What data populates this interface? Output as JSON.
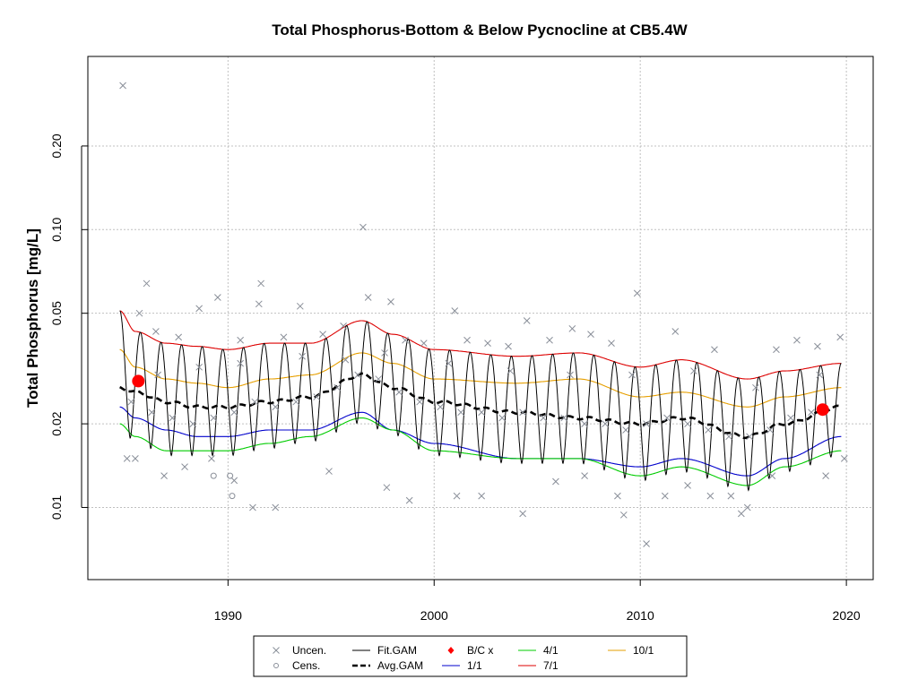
{
  "chart_data": {
    "type": "scatter",
    "title": "Total Phosphorus-Bottom & Below Pycnocline at CB5.4W",
    "xlabel": "",
    "ylabel": "Total Phosphorus [mg/L]",
    "y_scale": "log",
    "xlim": [
      1983.2,
      2021.3
    ],
    "ylim": [
      0.0055,
      0.42
    ],
    "x_ticks": [
      "1990",
      "2000",
      "2010",
      "2020"
    ],
    "y_ticks": [
      "0.01",
      "0.02",
      "0.05",
      "0.10",
      "0.20"
    ],
    "grid": true,
    "grid_style": "dotted grey",
    "legend": {
      "placement": "bottom-outside",
      "entries": [
        {
          "label": "Uncen.",
          "symbol": "x",
          "color": "#8a8f99"
        },
        {
          "label": "Cens.",
          "symbol": "circle",
          "color": "#8a8f99"
        },
        {
          "label": "Fit.GAM",
          "symbol": "line",
          "color": "#000000"
        },
        {
          "label": "Avg.GAM",
          "symbol": "dashed",
          "color": "#000000"
        },
        {
          "label": "B/C x",
          "symbol": "diamond",
          "color": "#ff0000"
        },
        {
          "label": "1/1",
          "symbol": "line",
          "color": "#0000cc"
        },
        {
          "label": "4/1",
          "symbol": "line",
          "color": "#00cc00"
        },
        {
          "label": "7/1",
          "symbol": "line",
          "color": "#dd0000"
        },
        {
          "label": "10/1",
          "symbol": "line",
          "color": "#e69f00"
        }
      ]
    },
    "colors": {
      "points": "#8a8f99",
      "fit": "#000000",
      "avg": "#000000",
      "bc": "#ff0000",
      "jan": "#0000cc",
      "apr": "#00cc00",
      "jul": "#dd0000",
      "oct": "#e69f00"
    },
    "bc_points": [
      {
        "x": 1985.65,
        "y": 0.0285
      },
      {
        "x": 2018.85,
        "y": 0.0225
      }
    ],
    "series": [
      {
        "name": "7/1",
        "x": [
          1984.75,
          1985.5,
          1987,
          1988.5,
          1990,
          1992,
          1994,
          1996.5,
          1998,
          2000,
          2004,
          2007,
          2010,
          2012,
          2015.2,
          2017,
          2019.75
        ],
        "y": [
          0.051,
          0.043,
          0.039,
          0.038,
          0.037,
          0.039,
          0.039,
          0.047,
          0.042,
          0.037,
          0.035,
          0.036,
          0.032,
          0.034,
          0.029,
          0.031,
          0.033
        ]
      },
      {
        "name": "10/1",
        "x": [
          1984.75,
          1985.5,
          1987,
          1988.5,
          1990,
          1992,
          1994,
          1996.5,
          1998,
          2000,
          2004,
          2007,
          2010,
          2012,
          2015.2,
          2017,
          2019.75
        ],
        "y": [
          0.037,
          0.032,
          0.029,
          0.028,
          0.027,
          0.029,
          0.03,
          0.036,
          0.033,
          0.029,
          0.028,
          0.029,
          0.025,
          0.026,
          0.023,
          0.025,
          0.027
        ]
      },
      {
        "name": "Avg.GAM",
        "x": [
          1984.75,
          1985.5,
          1987,
          1988.5,
          1990,
          1992,
          1994,
          1996.5,
          1998,
          2000,
          2004,
          2007,
          2010,
          2012,
          2015.2,
          2017,
          2019.75
        ],
        "y": [
          0.027,
          0.026,
          0.024,
          0.023,
          0.023,
          0.024,
          0.025,
          0.03,
          0.027,
          0.024,
          0.022,
          0.021,
          0.02,
          0.021,
          0.018,
          0.02,
          0.023
        ]
      },
      {
        "name": "1/1",
        "x": [
          1984.75,
          1985.5,
          1987,
          1988.5,
          1990,
          1992,
          1994,
          1996.5,
          1998,
          2000,
          2004,
          2007,
          2010,
          2012,
          2015.2,
          2017,
          2019.75
        ],
        "y": [
          0.023,
          0.021,
          0.019,
          0.018,
          0.018,
          0.019,
          0.019,
          0.022,
          0.019,
          0.017,
          0.015,
          0.015,
          0.014,
          0.015,
          0.013,
          0.015,
          0.018
        ]
      },
      {
        "name": "4/1",
        "x": [
          1984.75,
          1985.5,
          1987,
          1988.5,
          1990,
          1992,
          1994,
          1996.5,
          1998,
          2000,
          2004,
          2007,
          2010,
          2012,
          2015.2,
          2017,
          2019.75
        ],
        "y": [
          0.02,
          0.018,
          0.016,
          0.016,
          0.016,
          0.017,
          0.018,
          0.021,
          0.019,
          0.016,
          0.015,
          0.015,
          0.013,
          0.014,
          0.012,
          0.014,
          0.016
        ]
      }
    ],
    "scatter_points": [
      {
        "x": 1984.9,
        "y": 0.33
      },
      {
        "x": 1996.55,
        "y": 0.102
      },
      {
        "x": 1986.05,
        "y": 0.064
      },
      {
        "x": 1991.6,
        "y": 0.064
      },
      {
        "x": 2009.85,
        "y": 0.059
      },
      {
        "x": 1989.5,
        "y": 0.057
      },
      {
        "x": 1996.8,
        "y": 0.057
      },
      {
        "x": 1991.5,
        "y": 0.054
      },
      {
        "x": 1997.9,
        "y": 0.055
      },
      {
        "x": 1993.5,
        "y": 0.053
      },
      {
        "x": 2001.0,
        "y": 0.051
      },
      {
        "x": 1985.7,
        "y": 0.05
      },
      {
        "x": 1988.6,
        "y": 0.052
      },
      {
        "x": 1986.5,
        "y": 0.043
      },
      {
        "x": 1987.6,
        "y": 0.041
      },
      {
        "x": 1990.6,
        "y": 0.04
      },
      {
        "x": 1992.7,
        "y": 0.041
      },
      {
        "x": 1994.6,
        "y": 0.042
      },
      {
        "x": 1995.6,
        "y": 0.045
      },
      {
        "x": 1998.6,
        "y": 0.04
      },
      {
        "x": 1999.5,
        "y": 0.039
      },
      {
        "x": 2001.6,
        "y": 0.04
      },
      {
        "x": 2002.6,
        "y": 0.039
      },
      {
        "x": 2003.6,
        "y": 0.038
      },
      {
        "x": 2004.5,
        "y": 0.047
      },
      {
        "x": 2005.6,
        "y": 0.04
      },
      {
        "x": 2006.7,
        "y": 0.044
      },
      {
        "x": 2007.6,
        "y": 0.042
      },
      {
        "x": 2008.6,
        "y": 0.039
      },
      {
        "x": 2011.7,
        "y": 0.043
      },
      {
        "x": 2013.6,
        "y": 0.037
      },
      {
        "x": 2016.6,
        "y": 0.037
      },
      {
        "x": 2017.6,
        "y": 0.04
      },
      {
        "x": 2018.6,
        "y": 0.038
      },
      {
        "x": 2019.7,
        "y": 0.041
      },
      {
        "x": 1985.3,
        "y": 0.024
      },
      {
        "x": 1986.3,
        "y": 0.022
      },
      {
        "x": 1987.3,
        "y": 0.021
      },
      {
        "x": 1988.3,
        "y": 0.02
      },
      {
        "x": 1989.3,
        "y": 0.021
      },
      {
        "x": 1990.3,
        "y": 0.022
      },
      {
        "x": 1991.3,
        "y": 0.024
      },
      {
        "x": 1992.3,
        "y": 0.023
      },
      {
        "x": 1993.3,
        "y": 0.024
      },
      {
        "x": 1994.3,
        "y": 0.025
      },
      {
        "x": 1995.3,
        "y": 0.027
      },
      {
        "x": 1996.3,
        "y": 0.03
      },
      {
        "x": 1997.3,
        "y": 0.029
      },
      {
        "x": 1998.3,
        "y": 0.026
      },
      {
        "x": 1999.3,
        "y": 0.024
      },
      {
        "x": 2000.3,
        "y": 0.023
      },
      {
        "x": 2001.3,
        "y": 0.022
      },
      {
        "x": 2002.3,
        "y": 0.022
      },
      {
        "x": 2003.3,
        "y": 0.021
      },
      {
        "x": 2004.3,
        "y": 0.022
      },
      {
        "x": 2005.3,
        "y": 0.021
      },
      {
        "x": 2006.3,
        "y": 0.021
      },
      {
        "x": 2007.3,
        "y": 0.02
      },
      {
        "x": 2008.3,
        "y": 0.02
      },
      {
        "x": 2009.3,
        "y": 0.019
      },
      {
        "x": 2010.3,
        "y": 0.02
      },
      {
        "x": 2011.3,
        "y": 0.021
      },
      {
        "x": 2012.3,
        "y": 0.02
      },
      {
        "x": 2013.3,
        "y": 0.019
      },
      {
        "x": 2014.3,
        "y": 0.018
      },
      {
        "x": 2015.3,
        "y": 0.018
      },
      {
        "x": 2016.3,
        "y": 0.019
      },
      {
        "x": 2017.3,
        "y": 0.021
      },
      {
        "x": 2018.3,
        "y": 0.022
      },
      {
        "x": 1985.1,
        "y": 0.015
      },
      {
        "x": 1985.5,
        "y": 0.015
      },
      {
        "x": 1986.9,
        "y": 0.013
      },
      {
        "x": 1987.9,
        "y": 0.014
      },
      {
        "x": 1989.2,
        "y": 0.015
      },
      {
        "x": 1990.3,
        "y": 0.0125
      },
      {
        "x": 1991.2,
        "y": 0.01
      },
      {
        "x": 1992.3,
        "y": 0.01
      },
      {
        "x": 1994.9,
        "y": 0.0135
      },
      {
        "x": 1997.7,
        "y": 0.0118
      },
      {
        "x": 1998.8,
        "y": 0.0106
      },
      {
        "x": 2001.1,
        "y": 0.011
      },
      {
        "x": 2002.3,
        "y": 0.011
      },
      {
        "x": 2004.3,
        "y": 0.0095
      },
      {
        "x": 2005.9,
        "y": 0.0124
      },
      {
        "x": 2007.3,
        "y": 0.013
      },
      {
        "x": 2008.9,
        "y": 0.011
      },
      {
        "x": 2009.2,
        "y": 0.0094
      },
      {
        "x": 2010.3,
        "y": 0.0074
      },
      {
        "x": 2011.2,
        "y": 0.011
      },
      {
        "x": 2012.3,
        "y": 0.012
      },
      {
        "x": 2013.4,
        "y": 0.011
      },
      {
        "x": 2014.4,
        "y": 0.011
      },
      {
        "x": 2014.9,
        "y": 0.0095
      },
      {
        "x": 2015.2,
        "y": 0.01
      },
      {
        "x": 2016.4,
        "y": 0.013
      },
      {
        "x": 2019.0,
        "y": 0.013
      },
      {
        "x": 2019.9,
        "y": 0.015
      },
      {
        "x": 1986.6,
        "y": 0.03
      },
      {
        "x": 1988.6,
        "y": 0.032
      },
      {
        "x": 1990.6,
        "y": 0.033
      },
      {
        "x": 1993.6,
        "y": 0.035
      },
      {
        "x": 1995.7,
        "y": 0.034
      },
      {
        "x": 1997.6,
        "y": 0.036
      },
      {
        "x": 2000.7,
        "y": 0.033
      },
      {
        "x": 2003.7,
        "y": 0.031
      },
      {
        "x": 2006.6,
        "y": 0.03
      },
      {
        "x": 2009.6,
        "y": 0.03
      },
      {
        "x": 2012.6,
        "y": 0.031
      },
      {
        "x": 2015.6,
        "y": 0.027
      },
      {
        "x": 2018.7,
        "y": 0.03
      }
    ],
    "censored_points": [
      {
        "x": 1989.3,
        "y": 0.013
      },
      {
        "x": 1990.1,
        "y": 0.013
      },
      {
        "x": 1990.2,
        "y": 0.011
      }
    ]
  }
}
